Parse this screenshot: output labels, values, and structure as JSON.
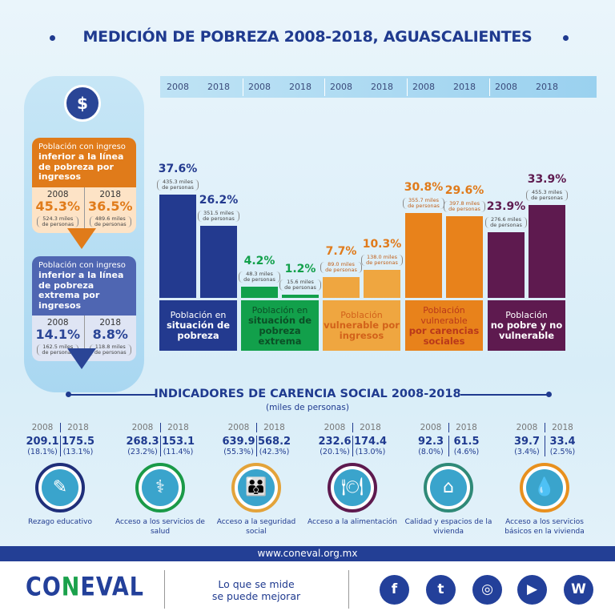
{
  "title": "MEDICIÓN DE POBREZA 2008-2018, AGUASCALIENTES",
  "left_panel": {
    "icon": "money-stack-icon",
    "income_poverty": {
      "heading_light": "Población con ingreso",
      "heading_bold": "inferior a la línea de pobreza por ingresos",
      "years": [
        "2008",
        "2018"
      ],
      "percents": [
        "45.3%",
        "36.5%"
      ],
      "people": [
        "524.3 miles de personas",
        "489.6 miles de personas"
      ]
    },
    "extreme_income_poverty": {
      "heading_light": "Población con ingreso",
      "heading_bold": "inferior a la línea de pobreza extrema por ingresos",
      "years": [
        "2008",
        "2018"
      ],
      "percents": [
        "14.1%",
        "8.8%"
      ],
      "people": [
        "162.5 miles de personas",
        "118.8 miles de personas"
      ]
    }
  },
  "chart_data": {
    "type": "bar",
    "years": [
      "2008",
      "2018"
    ],
    "ylabel": "",
    "ylim": [
      0,
      40
    ],
    "groups": [
      {
        "label_light": "Población en",
        "label_bold": "situación de pobreza",
        "color": "#233a8f",
        "label_color": "#ffffff",
        "values": [
          37.6,
          26.2
        ],
        "value_labels": [
          "37.6%",
          "26.2%"
        ],
        "people": [
          "435.3 miles de personas",
          "351.5 miles de personas"
        ]
      },
      {
        "label_light": "Población en",
        "label_bold": "situación de pobreza extrema",
        "color": "#12a04b",
        "label_color": "#0b4f26",
        "values": [
          4.2,
          1.2
        ],
        "value_labels": [
          "4.2%",
          "1.2%"
        ],
        "people": [
          "48.3 miles de personas",
          "15.6 miles de personas"
        ]
      },
      {
        "label_light": "Población",
        "label_bold": "vulnerable por ingresos",
        "color": "#efa640",
        "label_color": "#d2621a",
        "values": [
          7.7,
          10.3
        ],
        "value_labels": [
          "7.7%",
          "10.3%"
        ],
        "people": [
          "89.0 miles de personas",
          "138.0 miles de personas"
        ]
      },
      {
        "label_light": "Población vulnerable",
        "label_bold": "por carencias sociales",
        "color": "#e8821b",
        "label_color": "#b9381a",
        "values": [
          30.8,
          29.6
        ],
        "value_labels": [
          "30.8%",
          "29.6%"
        ],
        "people": [
          "355.7 miles de personas",
          "397.8 miles de personas"
        ]
      },
      {
        "label_light": "Población",
        "label_bold": "no pobre y no vulnerable",
        "color": "#5e1a4f",
        "label_color": "#ffffff",
        "values": [
          23.9,
          33.9
        ],
        "value_labels": [
          "23.9%",
          "33.9%"
        ],
        "people": [
          "276.6 miles de personas",
          "455.3 miles de personas"
        ]
      }
    ]
  },
  "indicators": {
    "title": "INDICADORES DE CARENCIA SOCIAL 2008-2018",
    "subtitle": "(miles de personas)",
    "years": [
      "2008",
      "2018"
    ],
    "items": [
      {
        "label": "Rezago educativo",
        "values": [
          "209.1",
          "175.5"
        ],
        "percents": [
          "(18.1%)",
          "(13.1%)"
        ],
        "icon": "pencil-icon",
        "ring": "#1f2f7a"
      },
      {
        "label": "Acceso a los servicios de salud",
        "values": [
          "268.3",
          "153.1"
        ],
        "percents": [
          "(23.2%)",
          "(11.4%)"
        ],
        "icon": "doctor-icon",
        "ring": "#1a9a48"
      },
      {
        "label": "Acceso a la seguridad social",
        "values": [
          "639.9",
          "568.2"
        ],
        "percents": [
          "(55.3%)",
          "(42.3%)"
        ],
        "icon": "family-hands-icon",
        "ring": "#e3a33a"
      },
      {
        "label": "Acceso a la alimentación",
        "values": [
          "232.6",
          "174.4"
        ],
        "percents": [
          "(20.1%)",
          "(13.0%)"
        ],
        "icon": "plate-cutlery-icon",
        "ring": "#5e1a4f"
      },
      {
        "label": "Calidad y espacios de la vivienda",
        "values": [
          "92.3",
          "61.5"
        ],
        "percents": [
          "(8.0%)",
          "(4.6%)"
        ],
        "icon": "house-hands-icon",
        "ring": "#2f8a78"
      },
      {
        "label": "Acceso a los servicios básicos en la vivienda",
        "values": [
          "39.7",
          "33.4"
        ],
        "percents": [
          "(3.4%)",
          "(2.5%)"
        ],
        "icon": "water-tap-icon",
        "ring": "#e8901e"
      }
    ]
  },
  "footer": {
    "url": "www.coneval.org.mx",
    "logo": "CONEVAL",
    "tagline_1": "Lo que se mide",
    "tagline_2": "se puede mejorar",
    "social": [
      "facebook-icon",
      "twitter-icon",
      "instagram-icon",
      "youtube-icon",
      "wikipedia-icon"
    ]
  }
}
